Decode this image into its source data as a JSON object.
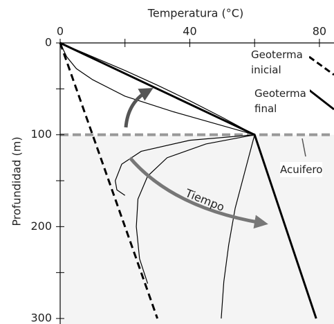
{
  "chart_data": {
    "type": "line",
    "xlabel": "Temperatura (°C)",
    "ylabel": "Profundidad (m)",
    "xlim": [
      0,
      84.5
    ],
    "ylim": [
      0,
      306
    ],
    "xticks": [
      0,
      40,
      80
    ],
    "xminorticks": [
      20,
      60
    ],
    "yticks": [
      0,
      100,
      200,
      300
    ],
    "yminorticks": [
      50,
      150,
      250
    ],
    "y_inverted": true,
    "x_axis_position": "top",
    "aquifer": {
      "label": "Acuifero",
      "depth": 100,
      "color": "#999999"
    },
    "annotations": [
      {
        "text": "Tiempo"
      }
    ],
    "series": [
      {
        "name": "Geoterma inicial",
        "color": "#000000",
        "linestyle": "dashed",
        "linewidth": 3,
        "x": [
          0,
          30
        ],
        "y": [
          0,
          300
        ]
      },
      {
        "name": "Geoterma final",
        "color": "#000000",
        "linestyle": "solid",
        "linewidth": 3,
        "x": [
          0,
          60,
          79
        ],
        "y": [
          0,
          100,
          300
        ]
      },
      {
        "color": "#000000",
        "linestyle": "solid",
        "linewidth": 1.2,
        "x": [
          0,
          2,
          5,
          10,
          20,
          35,
          50,
          60
        ],
        "y": [
          0,
          15,
          28,
          40,
          58,
          75,
          90,
          100
        ]
      },
      {
        "color": "#000000",
        "linestyle": "solid",
        "linewidth": 1.2,
        "x": [
          0,
          10,
          20,
          30,
          40,
          50,
          60
        ],
        "y": [
          0,
          15,
          30,
          46,
          63,
          81,
          100
        ]
      },
      {
        "color": "#000000",
        "linestyle": "solid",
        "linewidth": 1.2,
        "x": [
          60,
          40,
          25,
          19,
          17,
          17.5,
          20
        ],
        "y": [
          100,
          106,
          118,
          132,
          150,
          160,
          166
        ]
      },
      {
        "color": "#000000",
        "linestyle": "solid",
        "linewidth": 1.2,
        "x": [
          60,
          45,
          33,
          27,
          24,
          23.5,
          24.5,
          27
        ],
        "y": [
          100,
          110,
          125,
          145,
          170,
          200,
          235,
          262
        ]
      },
      {
        "color": "#000000",
        "linestyle": "solid",
        "linewidth": 1.2,
        "x": [
          60,
          57,
          54,
          52,
          50.5,
          49.7
        ],
        "y": [
          100,
          140,
          180,
          220,
          260,
          300
        ]
      }
    ]
  }
}
